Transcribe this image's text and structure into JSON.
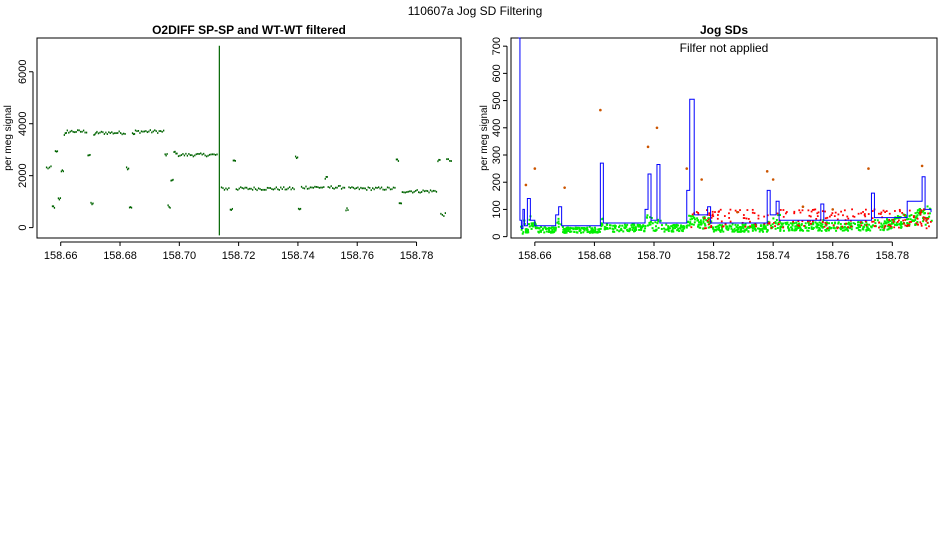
{
  "figure": {
    "title": "110607a   Jog SD Filtering"
  },
  "chart_data": [
    {
      "type": "scatter",
      "title": "O2DIFF SP-SP and WT-WT filtered",
      "xlabel": "",
      "ylabel": "per meg signal",
      "xlim": [
        158.652,
        158.795
      ],
      "ylim": [
        -400,
        7300
      ],
      "xticks": [
        "158.66",
        "158.68",
        "158.70",
        "158.72",
        "158.74",
        "158.76",
        "158.78"
      ],
      "xtick_values": [
        158.66,
        158.68,
        158.7,
        158.72,
        158.74,
        158.76,
        158.78
      ],
      "yticks": [
        "0",
        "2000",
        "4000",
        "6000"
      ],
      "ytick_values": [
        0,
        2000,
        4000,
        6000
      ],
      "grid": false,
      "color": "#006400",
      "segments": [
        [
          158.655,
          158.657,
          2300
        ],
        [
          158.657,
          158.658,
          800
        ],
        [
          158.658,
          158.659,
          2900
        ],
        [
          158.659,
          158.66,
          1100
        ],
        [
          158.66,
          158.661,
          2200
        ],
        [
          158.661,
          158.662,
          3600
        ],
        [
          158.662,
          158.669,
          3700
        ],
        [
          158.669,
          158.67,
          2800
        ],
        [
          158.67,
          158.671,
          900
        ],
        [
          158.671,
          158.672,
          3600
        ],
        [
          158.672,
          158.682,
          3650
        ],
        [
          158.682,
          158.683,
          2300
        ],
        [
          158.683,
          158.684,
          800
        ],
        [
          158.684,
          158.685,
          3600
        ],
        [
          158.685,
          158.695,
          3700
        ],
        [
          158.695,
          158.696,
          2800
        ],
        [
          158.696,
          158.697,
          800
        ],
        [
          158.697,
          158.698,
          1800
        ],
        [
          158.698,
          158.699,
          2900
        ],
        [
          158.699,
          158.713,
          2800
        ],
        [
          158.714,
          158.717,
          1500
        ],
        [
          158.717,
          158.718,
          700
        ],
        [
          158.718,
          158.719,
          2600
        ],
        [
          158.719,
          158.739,
          1500
        ],
        [
          158.739,
          158.74,
          2700
        ],
        [
          158.74,
          158.741,
          700
        ],
        [
          158.741,
          158.749,
          1550
        ],
        [
          158.749,
          158.75,
          1900
        ],
        [
          158.75,
          158.756,
          1550
        ],
        [
          158.756,
          158.757,
          700
        ],
        [
          158.757,
          158.773,
          1500
        ],
        [
          158.773,
          158.774,
          2600
        ],
        [
          158.774,
          158.775,
          900
        ],
        [
          158.775,
          158.787,
          1400
        ],
        [
          158.787,
          158.788,
          2600
        ],
        [
          158.788,
          158.79,
          500
        ],
        [
          158.79,
          158.792,
          2600
        ]
      ],
      "spike": {
        "x": 158.7135,
        "ymin": -300,
        "ymax": 7000
      }
    },
    {
      "type": "line",
      "title": "Jog SDs",
      "annotation": "Filfer not applied",
      "xlabel": "",
      "ylabel": "per meg signal",
      "xlim": [
        158.652,
        158.795
      ],
      "ylim": [
        -5,
        730
      ],
      "xticks": [
        "158.66",
        "158.68",
        "158.70",
        "158.72",
        "158.74",
        "158.76",
        "158.78"
      ],
      "xtick_values": [
        158.66,
        158.68,
        158.7,
        158.72,
        158.74,
        158.76,
        158.78
      ],
      "yticks": [
        "0",
        "100",
        "200",
        "300",
        "400",
        "500",
        "600",
        "700"
      ],
      "ytick_values": [
        0,
        100,
        200,
        300,
        400,
        500,
        600,
        700
      ],
      "grid": false,
      "series_colors": {
        "step": "#0000ff",
        "red": "#ff0000",
        "orange": "#cc5500",
        "green": "#00ee00"
      },
      "blue_step": [
        [
          158.6545,
          730
        ],
        [
          158.655,
          60
        ],
        [
          158.6555,
          30
        ],
        [
          158.656,
          100
        ],
        [
          158.6565,
          40
        ],
        [
          158.6575,
          140
        ],
        [
          158.6585,
          60
        ],
        [
          158.66,
          40
        ],
        [
          158.667,
          80
        ],
        [
          158.668,
          110
        ],
        [
          158.669,
          40
        ],
        [
          158.682,
          270
        ],
        [
          158.683,
          50
        ],
        [
          158.697,
          100
        ],
        [
          158.698,
          230
        ],
        [
          158.699,
          60
        ],
        [
          158.701,
          265
        ],
        [
          158.702,
          50
        ],
        [
          158.711,
          170
        ],
        [
          158.712,
          505
        ],
        [
          158.7135,
          80
        ],
        [
          158.718,
          110
        ],
        [
          158.719,
          50
        ],
        [
          158.738,
          170
        ],
        [
          158.739,
          80
        ],
        [
          158.741,
          130
        ],
        [
          158.742,
          60
        ],
        [
          158.756,
          120
        ],
        [
          158.757,
          60
        ],
        [
          158.773,
          160
        ],
        [
          158.774,
          70
        ],
        [
          158.785,
          130
        ],
        [
          158.79,
          220
        ],
        [
          158.791,
          100
        ],
        [
          158.793,
          90
        ]
      ],
      "spikes_orange": [
        [
          158.657,
          190
        ],
        [
          158.66,
          250
        ],
        [
          158.67,
          180
        ],
        [
          158.682,
          465
        ],
        [
          158.698,
          330
        ],
        [
          158.701,
          400
        ],
        [
          158.711,
          250
        ],
        [
          158.716,
          210
        ],
        [
          158.738,
          240
        ],
        [
          158.74,
          210
        ],
        [
          158.772,
          250
        ],
        [
          158.79,
          260
        ],
        [
          158.75,
          110
        ],
        [
          158.76,
          100
        ],
        [
          158.728,
          90
        ]
      ]
    }
  ]
}
